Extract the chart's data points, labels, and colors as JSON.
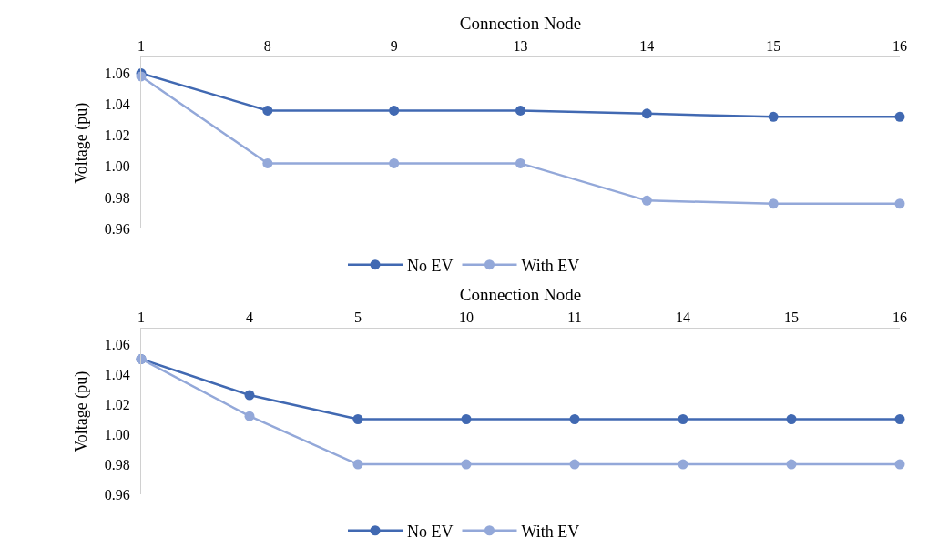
{
  "chart_data": [
    {
      "type": "line",
      "xlabel": "Connection Node",
      "ylabel": "Voltage (pu)",
      "categories": [
        "1",
        "8",
        "9",
        "13",
        "14",
        "15",
        "16"
      ],
      "series": [
        {
          "name": "No EV",
          "color": "#4169b2",
          "values": [
            1.06,
            1.036,
            1.036,
            1.036,
            1.034,
            1.032,
            1.032
          ]
        },
        {
          "name": "With EV",
          "color": "#93a8d9",
          "values": [
            1.058,
            1.002,
            1.002,
            1.002,
            0.978,
            0.976,
            0.976
          ]
        }
      ],
      "ylim": [
        0.96,
        1.07
      ],
      "yticks": [
        0.96,
        0.98,
        {
          "value": 1.0,
          "label": "1.00"
        },
        1.02,
        1.04,
        1.06
      ],
      "legend": "bottom",
      "marker": "circle",
      "line_style": "solid"
    },
    {
      "type": "line",
      "xlabel": "Connection Node",
      "ylabel": "Voltage (pu)",
      "categories": [
        "1",
        "4",
        "5",
        "10",
        "11",
        "14",
        "15",
        "16"
      ],
      "series": [
        {
          "name": "No EV",
          "color": "#4169b2",
          "values": [
            1.05,
            1.026,
            1.01,
            1.01,
            1.01,
            1.01,
            1.01,
            1.01
          ]
        },
        {
          "name": "With EV",
          "color": "#93a8d9",
          "values": [
            1.05,
            1.012,
            0.98,
            0.98,
            0.98,
            0.98,
            0.98,
            0.98
          ]
        }
      ],
      "ylim": [
        0.96,
        1.07
      ],
      "yticks": [
        0.96,
        0.98,
        {
          "value": 1.0,
          "label": "1.00"
        },
        1.02,
        1.04,
        1.06
      ],
      "legend": "bottom",
      "marker": "circle",
      "line_style": "solid"
    }
  ]
}
